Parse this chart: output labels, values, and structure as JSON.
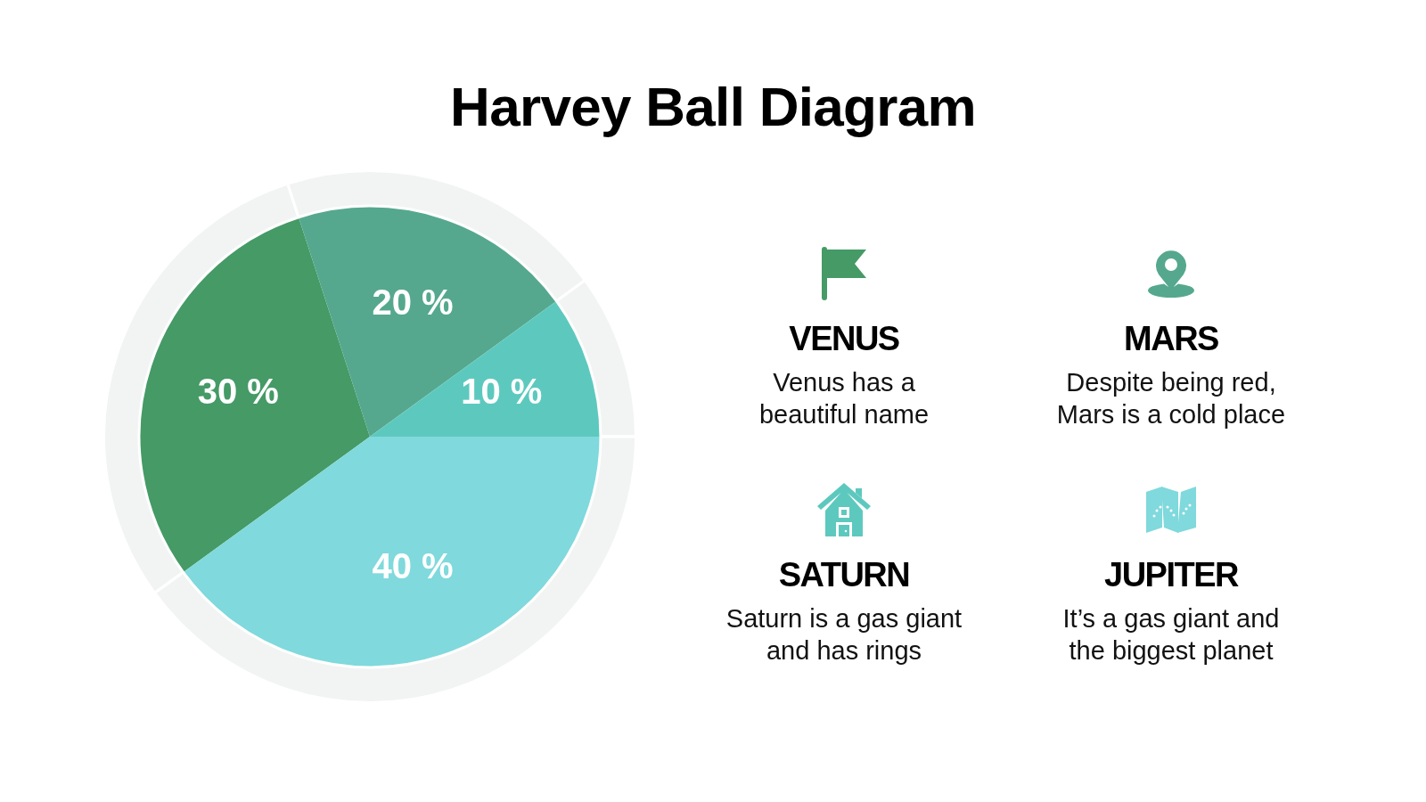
{
  "chart_data": {
    "type": "pie",
    "title": "Harvey Ball Diagram",
    "categories": [
      "VENUS",
      "MARS",
      "SATURN",
      "JUPITER"
    ],
    "series": [
      {
        "values": [
          30,
          20,
          10,
          40
        ],
        "color": "#f2f4f4"
      },
      {
        "values": [
          30,
          20,
          10,
          40
        ],
        "colors": [
          "#459a66",
          "#55a88e",
          "#5dc9be",
          "#80d9dc"
        ],
        "value_labels": [
          "30 %",
          "20 %",
          "10 %",
          "40 %"
        ]
      }
    ],
    "legend": "right",
    "annotations": [
      "Venus has a beautiful name",
      "Despite being red, Mars is a cold place",
      "Saturn is a gas giant and has rings",
      "It’s a gas giant and the biggest planet"
    ]
  }
}
